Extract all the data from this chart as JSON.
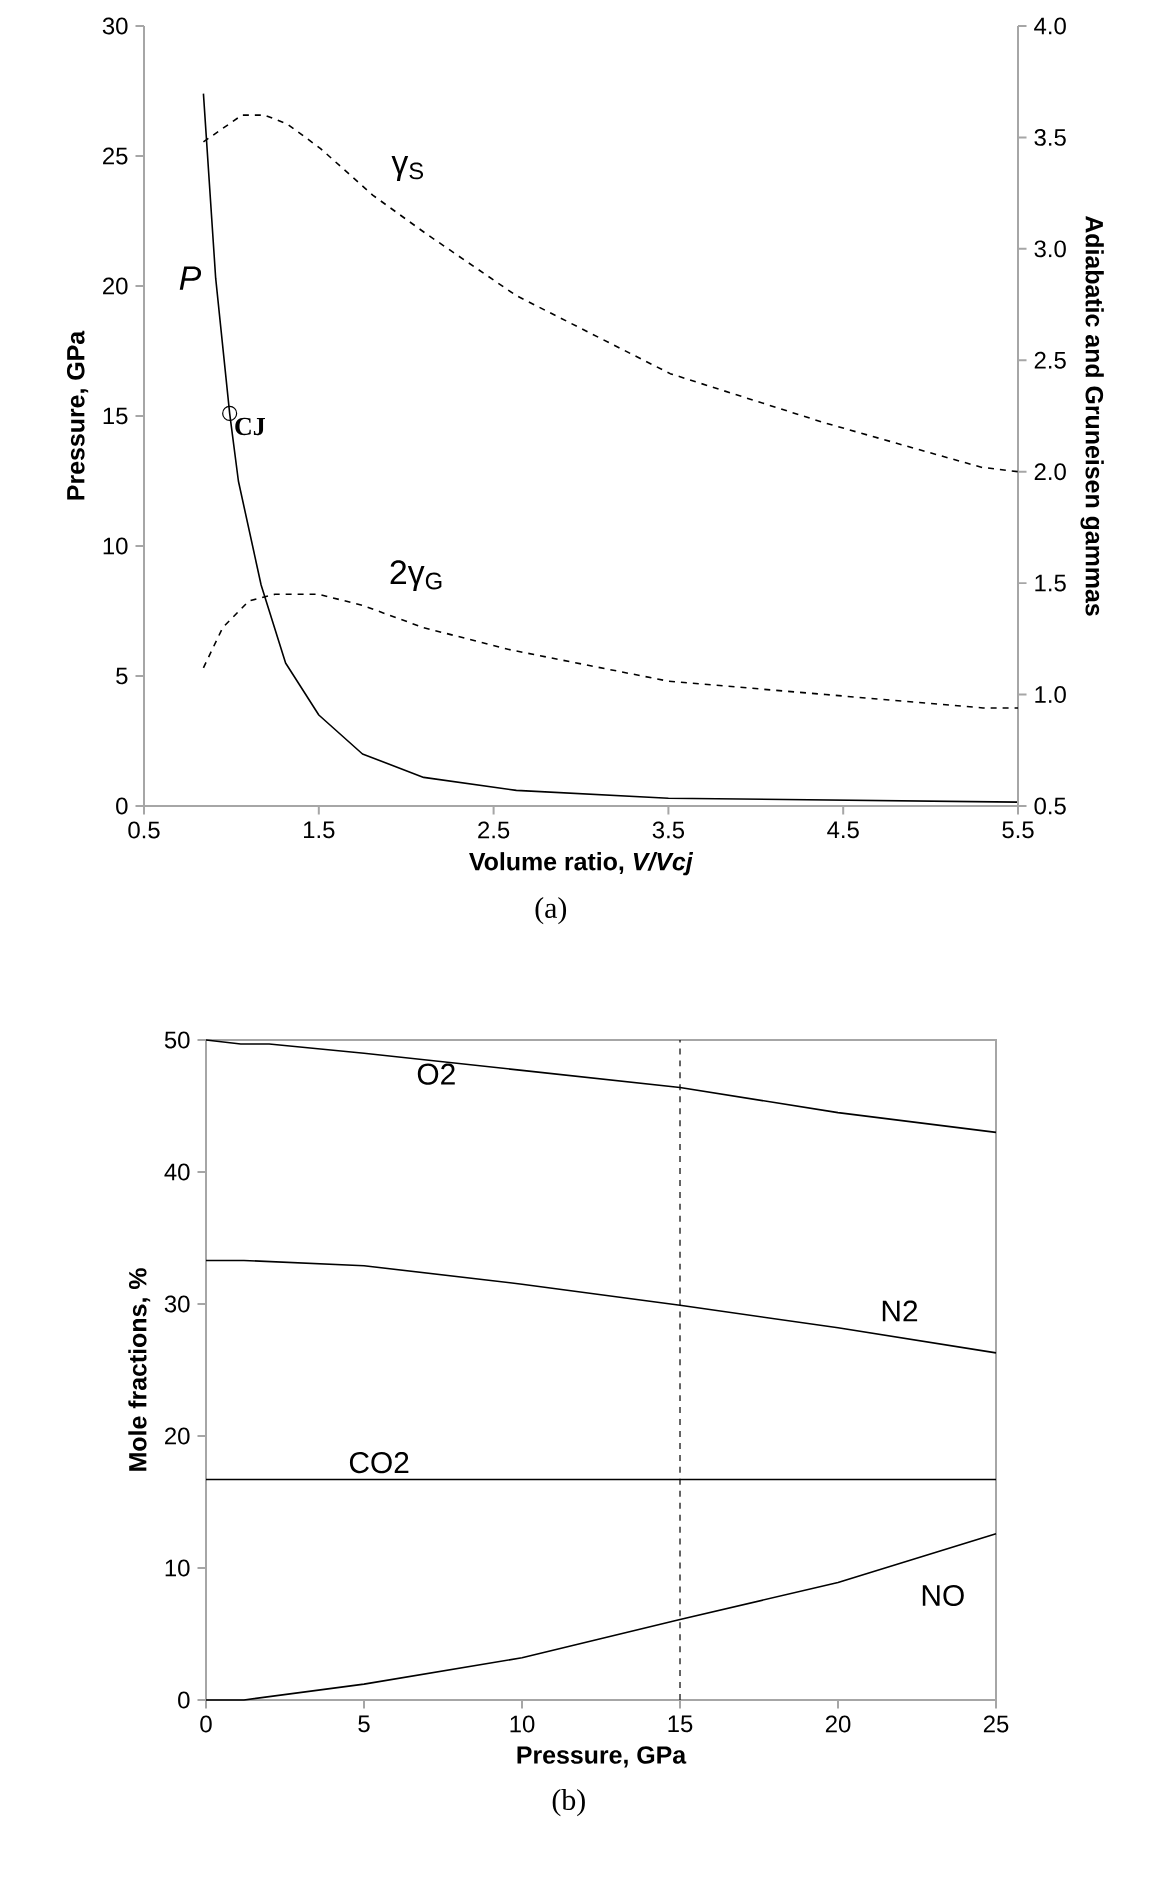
{
  "chart_data": [
    {
      "type": "line",
      "xlabel": "Volume ratio,  *V/Vcj*",
      "ylabel": "Pressure, GPa",
      "y2label": "Adiabatic and Gruneisen gammas",
      "xlim": [
        0.5,
        5.5
      ],
      "xticks": [
        0.5,
        1.5,
        2.5,
        3.5,
        4.5,
        5.5
      ],
      "ylim": [
        0,
        30
      ],
      "yticks": [
        0,
        5,
        10,
        15,
        20,
        25,
        30
      ],
      "y2lim": [
        0.5,
        4.0
      ],
      "y2ticks": [
        0.5,
        {
          "value": 1,
          "label": "1.0"
        },
        1.5,
        {
          "value": 2,
          "label": "2.0"
        },
        2.5,
        {
          "value": 3,
          "label": "3.0"
        },
        3.5,
        {
          "value": 4,
          "label": "4.0"
        }
      ],
      "series": [
        {
          "name": "P",
          "type": "line",
          "color": "#000000",
          "line_style": "solid",
          "x": [
            0.84,
            0.91,
            0.99,
            1.04,
            1.17,
            1.31,
            1.5,
            1.75,
            2.1,
            2.63,
            3.5,
            5.5
          ],
          "values": [
            27.4,
            20.3,
            15.1,
            12.5,
            8.5,
            5.5,
            3.5,
            2.0,
            1.1,
            0.6,
            0.3,
            0.15
          ]
        },
        {
          "name": "γ$_{S}$",
          "type": "line",
          "axis": "y2",
          "color": "#000000",
          "line_style": "dashed",
          "x": [
            0.84,
            1.06,
            1.19,
            1.32,
            1.51,
            1.81,
            2.11,
            2.63,
            3.51,
            4.39,
            5.29,
            5.5
          ],
          "values": [
            3.48,
            3.6,
            3.6,
            3.56,
            3.45,
            3.24,
            3.07,
            2.79,
            2.44,
            2.22,
            2.02,
            2.0
          ]
        },
        {
          "name": "2γ$_{G}$",
          "type": "line",
          "axis": "y2",
          "color": "#000000",
          "line_style": "dashed",
          "x": [
            0.84,
            0.95,
            1.1,
            1.25,
            1.5,
            1.75,
            2.1,
            2.6,
            3.5,
            4.4,
            5.3,
            5.5
          ],
          "values": [
            1.12,
            1.3,
            1.42,
            1.45,
            1.45,
            1.4,
            1.3,
            1.2,
            1.06,
            1.0,
            0.94,
            0.94
          ]
        },
        {
          "type": "scatter",
          "marker": "circle",
          "color": "#000000",
          "x": [
            0.99
          ],
          "values": [
            15.1
          ]
        }
      ],
      "annotations": [
        {
          "text": "CJ",
          "x": 0.99,
          "y": 15.1
        },
        "(a)"
      ]
    },
    {
      "type": "line",
      "xlabel": "Pressure, GPa",
      "ylabel": "Mole fractions,  %",
      "xlim": [
        0,
        25
      ],
      "xticks": [
        0,
        5,
        10,
        15,
        20,
        25
      ],
      "ylim": [
        0,
        50
      ],
      "yticks": [
        0,
        10,
        20,
        30,
        40,
        50
      ],
      "series": [
        {
          "name": "O2",
          "color": "#000000",
          "x": [
            0,
            1.1,
            2,
            5,
            10,
            15,
            20,
            25
          ],
          "values": [
            50,
            49.7,
            49.7,
            49.0,
            47.7,
            46.4,
            44.5,
            43.0
          ]
        },
        {
          "name": "N2",
          "color": "#000000",
          "x": [
            0,
            1.2,
            5,
            10,
            15,
            20,
            25
          ],
          "values": [
            33.3,
            33.3,
            32.9,
            31.5,
            29.9,
            28.2,
            26.3
          ]
        },
        {
          "name": "CO2",
          "color": "#000000",
          "x": [
            0,
            25
          ],
          "values": [
            16.7,
            16.7
          ]
        },
        {
          "name": "NO",
          "color": "#000000",
          "x": [
            0,
            1.2,
            5,
            10,
            15,
            20,
            25
          ],
          "values": [
            0,
            0,
            1.2,
            3.2,
            6.1,
            8.9,
            12.6
          ]
        }
      ],
      "ref_lines": [
        {
          "axis": "x",
          "value": 15,
          "line_style": "dashed",
          "color": "#000000"
        }
      ],
      "annotations": [
        "(b)"
      ]
    }
  ]
}
